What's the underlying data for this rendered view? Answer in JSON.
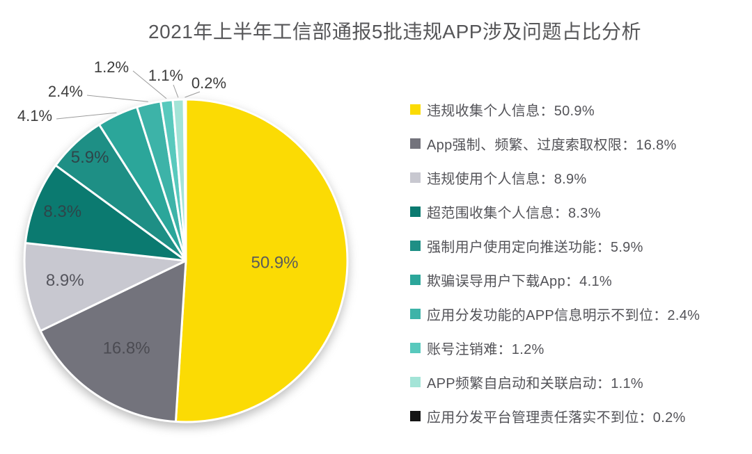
{
  "title": "2021年上半年工信部通报5批违规APP涉及问题占比分析",
  "chart_data": {
    "type": "pie",
    "title": "2021年上半年工信部通报5批违规APP涉及问题占比分析",
    "legend_position": "right",
    "start_angle_deg": 0,
    "direction": "clockwise",
    "slice_separator_color": "#ffffff",
    "slices": [
      {
        "label": "违规收集个人信息",
        "value": 50.9,
        "display": "50.9%",
        "color": "#FBDB04",
        "label_color": "#5A5A5A",
        "label_placement": "inside"
      },
      {
        "label": "App强制、频繁、过度索取权限",
        "value": 16.8,
        "display": "16.8%",
        "color": "#73737C",
        "label_color": "#4B4B52",
        "label_placement": "inside"
      },
      {
        "label": "违规使用个人信息",
        "value": 8.9,
        "display": "8.9%",
        "color": "#C8C8D0",
        "label_color": "#55555D",
        "label_placement": "inside"
      },
      {
        "label": "超范围收集个人信息",
        "value": 8.3,
        "display": "8.3%",
        "color": "#0B7A70",
        "label_color": "#2E4549",
        "label_placement": "inside"
      },
      {
        "label": "强制用户使用定向推送功能",
        "value": 5.9,
        "display": "5.9%",
        "color": "#1E8F85",
        "label_color": "#2E4549",
        "label_placement": "inside"
      },
      {
        "label": "欺骗误导用户下载App",
        "value": 4.1,
        "display": "4.1%",
        "color": "#2BA69A",
        "label_color": "#3C3C3C",
        "label_placement": "outside"
      },
      {
        "label": "应用分发功能的APP信息明示不到位",
        "value": 2.4,
        "display": "2.4%",
        "color": "#3DB3A8",
        "label_color": "#3C3C3C",
        "label_placement": "outside"
      },
      {
        "label": "账号注销难",
        "value": 1.2,
        "display": "1.2%",
        "color": "#58C9BD",
        "label_color": "#3C3C3C",
        "label_placement": "outside"
      },
      {
        "label": "APP频繁自启动和关联启动",
        "value": 1.1,
        "display": "1.1%",
        "color": "#A3E4D7",
        "label_color": "#3C3C3C",
        "label_placement": "outside"
      },
      {
        "label": "应用分发平台管理责任落实不到位",
        "value": 0.2,
        "display": "0.2%",
        "color": "#151515",
        "label_color": "#3C3C3C",
        "label_placement": "outside"
      }
    ]
  }
}
